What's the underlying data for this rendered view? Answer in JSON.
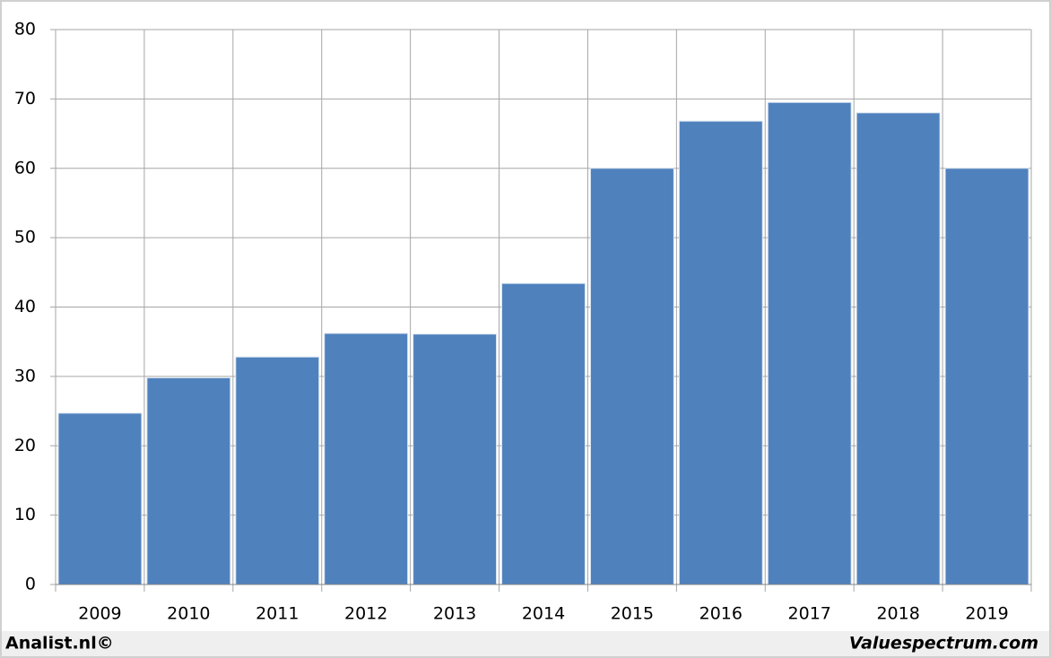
{
  "chart_data": {
    "type": "bar",
    "categories": [
      "2009",
      "2010",
      "2011",
      "2012",
      "2013",
      "2014",
      "2015",
      "2016",
      "2017",
      "2018",
      "2019"
    ],
    "values": [
      24.7,
      29.8,
      32.8,
      36.2,
      36.1,
      43.4,
      60.0,
      66.8,
      69.5,
      68.0,
      60.0
    ],
    "color": "#4f81bd",
    "ylim": [
      0,
      80
    ],
    "yticks": [
      0,
      10,
      20,
      30,
      40,
      50,
      60,
      70,
      80
    ],
    "grid": true
  },
  "footer": {
    "left": "Analist.nl©",
    "right": "Valuespectrum.com"
  }
}
